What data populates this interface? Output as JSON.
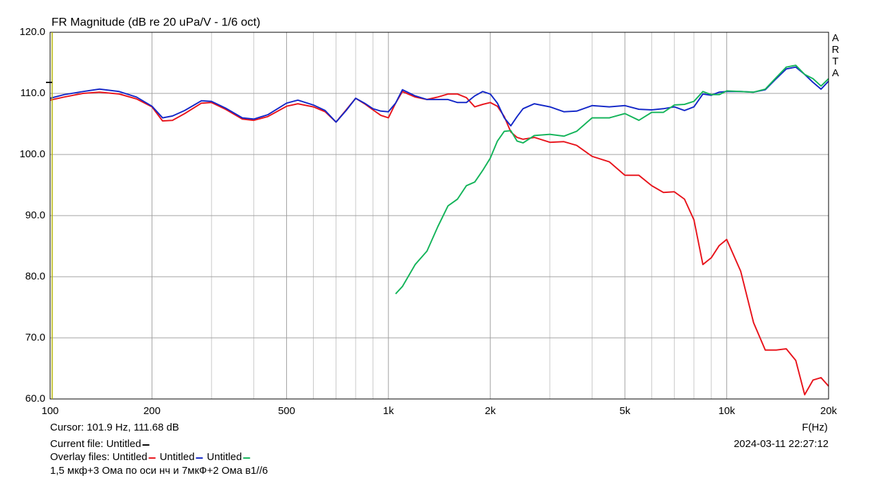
{
  "chart_data": {
    "type": "line",
    "title": "FR Magnitude (dB re 20 uPa/V - 1/6 oct)",
    "watermark": "ARTA",
    "x_label": "F(Hz)",
    "log_x": true,
    "grid": true,
    "xlim": [
      100,
      20000
    ],
    "ylim": [
      60,
      120
    ],
    "xticks": [
      100,
      200,
      500,
      {
        "value": 1000,
        "label": "1k"
      },
      {
        "value": 2000,
        "label": "2k"
      },
      {
        "value": 5000,
        "label": "5k"
      },
      {
        "value": 10000,
        "label": "10k"
      },
      {
        "value": 20000,
        "label": "20k"
      }
    ],
    "x_minor_grid": [
      300,
      400,
      600,
      700,
      800,
      900,
      3000,
      4000,
      6000,
      7000,
      8000,
      9000
    ],
    "yticks": [
      {
        "value": 60,
        "label": "60.0"
      },
      {
        "value": 70,
        "label": "70.0"
      },
      {
        "value": 80,
        "label": "80.0"
      },
      {
        "value": 90,
        "label": "90.0"
      },
      {
        "value": 100,
        "label": "100.0"
      },
      {
        "value": 110,
        "label": "110.0"
      },
      {
        "value": 120,
        "label": "120.0"
      }
    ],
    "x": [
      100,
      110,
      125,
      140,
      160,
      180,
      200,
      215,
      230,
      250,
      280,
      300,
      330,
      370,
      400,
      440,
      500,
      540,
      600,
      650,
      700,
      750,
      800,
      850,
      900,
      950,
      1000,
      1050,
      1100,
      1200,
      1300,
      1400,
      1500,
      1600,
      1700,
      1800,
      1900,
      2000,
      2100,
      2200,
      2300,
      2400,
      2500,
      2700,
      3000,
      3300,
      3600,
      4000,
      4500,
      5000,
      5500,
      6000,
      6500,
      7000,
      7500,
      8000,
      8500,
      9000,
      9500,
      10000,
      11000,
      12000,
      13000,
      14000,
      15000,
      16000,
      17000,
      18000,
      19000,
      20000
    ],
    "series": [
      {
        "name": "Untitled",
        "color": "#e8141c",
        "values": [
          108.9,
          109.4,
          110.0,
          110.2,
          109.9,
          109.1,
          107.8,
          105.5,
          105.6,
          106.7,
          108.4,
          108.5,
          107.4,
          105.8,
          105.6,
          106.2,
          107.9,
          108.3,
          107.8,
          107.0,
          105.3,
          107.3,
          109.2,
          108.3,
          107.3,
          106.4,
          106.0,
          108.4,
          110.3,
          109.4,
          109.0,
          109.4,
          109.9,
          109.9,
          109.3,
          107.8,
          108.2,
          108.5,
          107.9,
          106.2,
          103.7,
          102.8,
          102.5,
          102.8,
          102.0,
          102.1,
          101.5,
          99.7,
          98.8,
          96.6,
          96.6,
          94.9,
          93.8,
          93.9,
          92.7,
          89.3,
          82.0,
          83.1,
          85.1,
          86.1,
          80.9,
          72.5,
          68.0,
          68.0,
          68.2,
          66.3,
          60.7,
          63.1,
          63.5,
          62.1
        ]
      },
      {
        "name": "Untitled",
        "color": "#1428c8",
        "values": [
          109.2,
          109.8,
          110.3,
          110.7,
          110.3,
          109.4,
          107.9,
          106.0,
          106.3,
          107.2,
          108.8,
          108.7,
          107.6,
          106.0,
          105.8,
          106.5,
          108.4,
          108.9,
          108.1,
          107.2,
          105.3,
          107.2,
          109.2,
          108.4,
          107.5,
          107.1,
          107.0,
          108.4,
          110.6,
          109.6,
          109.0,
          109.0,
          109.0,
          108.5,
          108.5,
          109.6,
          110.3,
          109.9,
          108.4,
          106.0,
          104.7,
          106.2,
          107.5,
          108.3,
          107.8,
          107.0,
          107.1,
          108.0,
          107.8,
          108.0,
          107.4,
          107.3,
          107.5,
          107.8,
          107.2,
          107.8,
          109.9,
          109.7,
          110.2,
          110.3,
          110.3,
          110.2,
          110.6,
          112.4,
          114.0,
          114.3,
          113.1,
          111.8,
          110.7,
          112.0
        ]
      },
      {
        "name": "Untitled",
        "color": "#14b45a",
        "values": [
          null,
          null,
          null,
          null,
          null,
          null,
          null,
          null,
          null,
          null,
          null,
          null,
          null,
          null,
          null,
          null,
          null,
          null,
          null,
          null,
          null,
          null,
          null,
          null,
          null,
          null,
          null,
          77.2,
          78.4,
          82.0,
          84.2,
          88.2,
          91.6,
          92.7,
          94.9,
          95.5,
          97.4,
          99.4,
          102.2,
          103.8,
          103.9,
          102.2,
          101.9,
          103.1,
          103.3,
          103.0,
          103.8,
          106.0,
          106.0,
          106.7,
          105.6,
          106.9,
          106.9,
          108.1,
          108.2,
          108.7,
          110.3,
          109.8,
          109.8,
          110.4,
          110.3,
          110.2,
          110.7,
          112.6,
          114.3,
          114.6,
          113.1,
          112.4,
          111.2,
          112.4
        ]
      }
    ],
    "cursor": "Cursor: 101.9 Hz, 111.68 dB",
    "current_file": "Current file: Untitled",
    "overlay_label": "Overlay files:",
    "timestamp": "2024-03-11  22:27:12",
    "note": "1,5 мкф+3 Ома по оси нч и 7мкФ+2 Ома в1//6"
  }
}
